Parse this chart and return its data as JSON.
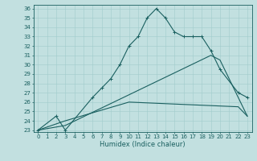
{
  "xlabel": "Humidex (Indice chaleur)",
  "bg_color": "#c2e0e0",
  "grid_color": "#a0cccc",
  "line_color": "#1a6060",
  "xlim": [
    -0.5,
    23.5
  ],
  "ylim": [
    22.8,
    36.4
  ],
  "xticks": [
    0,
    1,
    2,
    3,
    4,
    5,
    6,
    7,
    8,
    9,
    10,
    11,
    12,
    13,
    14,
    15,
    16,
    17,
    18,
    19,
    20,
    21,
    22,
    23
  ],
  "yticks": [
    23,
    24,
    25,
    26,
    27,
    28,
    29,
    30,
    31,
    32,
    33,
    34,
    35,
    36
  ],
  "line1_x": [
    0,
    2,
    3,
    6,
    7,
    8,
    9,
    10,
    11,
    12,
    13,
    14,
    15,
    16,
    17,
    18,
    19,
    20,
    22,
    23
  ],
  "line1_y": [
    23,
    24.5,
    23,
    26.5,
    27.5,
    28.5,
    30,
    32,
    33,
    35,
    36,
    35,
    33.5,
    33,
    33,
    33,
    31.5,
    29.5,
    27,
    26.5
  ],
  "line2_x": [
    0,
    3,
    19,
    20,
    23
  ],
  "line2_y": [
    23,
    23.5,
    31,
    30.5,
    24.5
  ],
  "line3_x": [
    0,
    3,
    10,
    22,
    23
  ],
  "line3_y": [
    23,
    24,
    26,
    25.5,
    24.5
  ],
  "tick_fontsize": 5,
  "xlabel_fontsize": 6,
  "linewidth": 0.8,
  "markersize": 2.5
}
